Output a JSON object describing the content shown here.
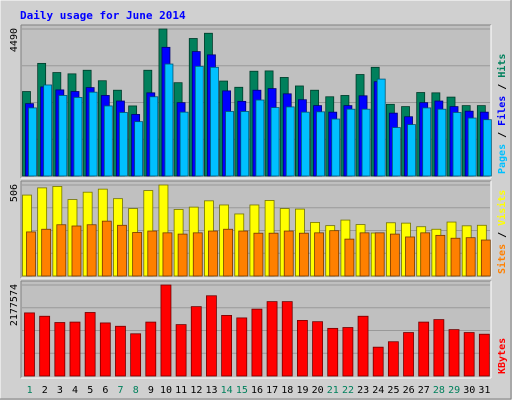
{
  "chart_data": {
    "type": "bar",
    "title": "Daily usage for June 2014",
    "categories": [
      "1",
      "2",
      "3",
      "4",
      "5",
      "6",
      "7",
      "8",
      "9",
      "10",
      "11",
      "12",
      "13",
      "14",
      "15",
      "16",
      "17",
      "18",
      "19",
      "20",
      "21",
      "22",
      "23",
      "24",
      "25",
      "26",
      "27",
      "28",
      "29",
      "30",
      "31"
    ],
    "weekend_days": [
      1,
      7,
      8,
      14,
      15,
      21,
      22,
      28,
      29
    ],
    "colors": {
      "hits": "#00805c",
      "files": "#0000ff",
      "pages": "#00c0ff",
      "visits": "#ffff00",
      "sites": "#ff8000",
      "kbytes": "#ff0000",
      "weekday_label": "#000000",
      "weekend_label": "#00805c",
      "panel_bg": "#c0c0c0",
      "frame_bg": "#d0d0d0",
      "title": "#0000ff"
    },
    "panels": [
      {
        "id": "hits_files_pages",
        "max_label": "4490",
        "max_value": 4490,
        "legend": [
          {
            "text": "Pages",
            "color": "#00c0ff"
          },
          {
            "text": " / ",
            "color": "#000000"
          },
          {
            "text": "Files",
            "color": "#0000ff"
          },
          {
            "text": " / ",
            "color": "#000000"
          },
          {
            "text": "Hits",
            "color": "#00805c"
          }
        ],
        "series": [
          {
            "name": "Hits",
            "color": "#00805c",
            "values": [
              2580,
              3440,
              3160,
              3120,
              3230,
              2910,
              2620,
              2140,
              3230,
              4490,
              2850,
              4200,
              4360,
              2900,
              2710,
              3200,
              3210,
              3010,
              2750,
              2620,
              2420,
              2460,
              3100,
              3320,
              2190,
              2120,
              2550,
              2540,
              2410,
              2150,
              2150
            ]
          },
          {
            "name": "Files",
            "color": "#0000ff",
            "values": [
              2210,
              2720,
              2630,
              2580,
              2700,
              2460,
              2290,
              1880,
              2540,
              3930,
              2240,
              3800,
              3700,
              2600,
              2280,
              2620,
              2670,
              2510,
              2330,
              2150,
              1950,
              2150,
              2450,
              2880,
              1920,
              1810,
              2240,
              2290,
              2120,
              1980,
              1950
            ]
          },
          {
            "name": "Pages",
            "color": "#00c0ff",
            "values": [
              2080,
              2780,
              2460,
              2400,
              2560,
              2140,
              1940,
              1660,
              2420,
              3420,
              1950,
              3350,
              3320,
              1970,
              1970,
              2320,
              2090,
              2110,
              1950,
              1960,
              1740,
              2040,
              2040,
              2960,
              1480,
              1570,
              2080,
              2040,
              1940,
              1770,
              1720
            ]
          }
        ]
      },
      {
        "id": "visits_sites",
        "max_label": "506",
        "max_value": 506,
        "legend": [
          {
            "text": "Sites",
            "color": "#ff8000"
          },
          {
            "text": " / ",
            "color": "#000000"
          },
          {
            "text": "Visits",
            "color": "#ffff00"
          }
        ],
        "series": [
          {
            "name": "Visits",
            "color": "#ffff00",
            "values": [
              450,
              490,
              498,
              425,
              466,
              483,
              430,
              375,
              475,
              506,
              370,
              383,
              418,
              395,
              345,
              395,
              420,
              375,
              372,
              298,
              280,
              311,
              286,
              239,
              296,
              294,
              274,
              260,
              300,
              279,
              282
            ]
          },
          {
            "name": "Sites",
            "color": "#ff8000",
            "values": [
              245,
              260,
              285,
              278,
              285,
              305,
              282,
              242,
              250,
              240,
              233,
              240,
              250,
              260,
              250,
              238,
              238,
              250,
              238,
              240,
              252,
              205,
              240,
              240,
              233,
              217,
              240,
              226,
              210,
              213,
              200
            ]
          }
        ]
      },
      {
        "id": "kbytes",
        "max_label": "2177574",
        "max_value": 2177574,
        "legend": [
          {
            "text": "KBytes",
            "color": "#ff0000"
          }
        ],
        "series": [
          {
            "name": "KBytes",
            "color": "#ff0000",
            "values": [
              1510000,
              1430000,
              1280000,
              1290000,
              1520000,
              1270000,
              1190000,
              1010000,
              1290000,
              2177574,
              1230000,
              1660000,
              1920000,
              1450000,
              1390000,
              1600000,
              1780000,
              1780000,
              1330000,
              1300000,
              1140000,
              1160000,
              1430000,
              690000,
              820000,
              1040000,
              1290000,
              1350000,
              1110000,
              1040000,
              1000000
            ]
          }
        ]
      }
    ]
  }
}
